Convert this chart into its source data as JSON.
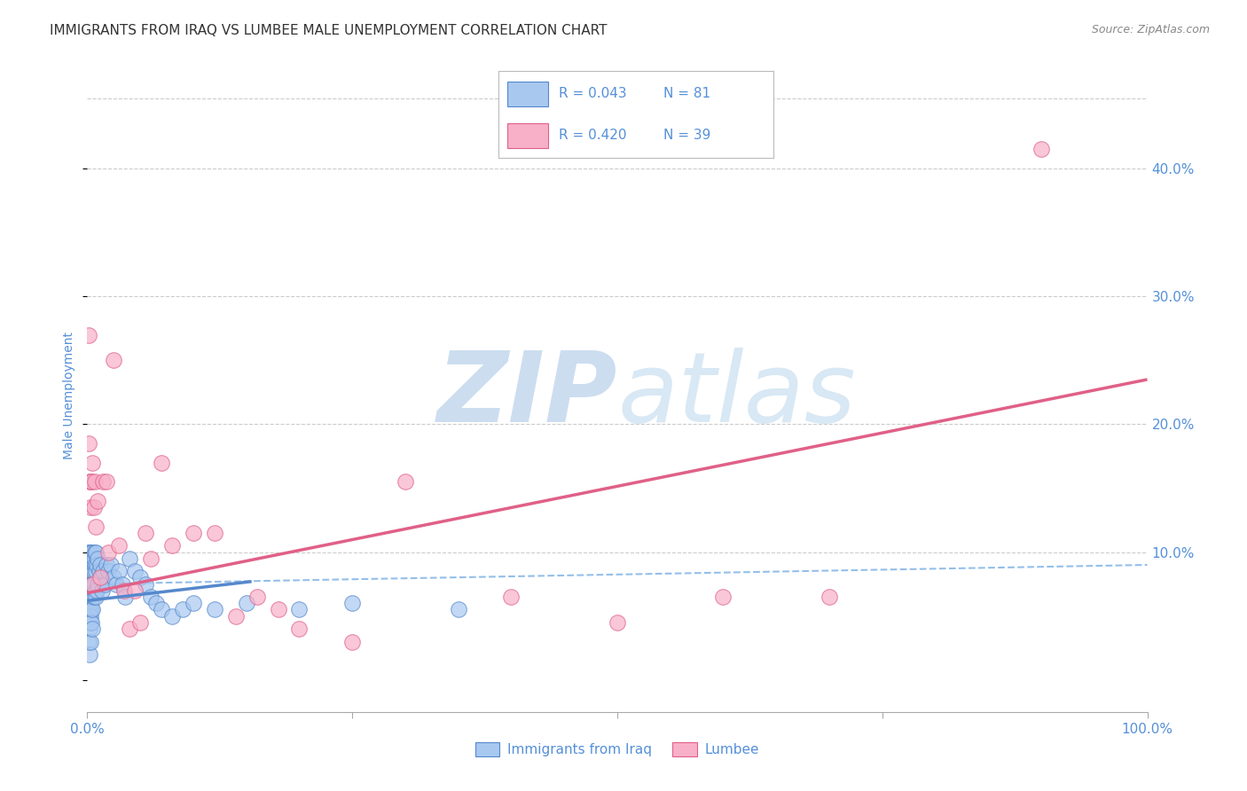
{
  "title": "IMMIGRANTS FROM IRAQ VS LUMBEE MALE UNEMPLOYMENT CORRELATION CHART",
  "source": "Source: ZipAtlas.com",
  "ylabel": "Male Unemployment",
  "xlim": [
    0.0,
    1.0
  ],
  "ylim": [
    -0.025,
    0.47
  ],
  "blue_R": "0.043",
  "blue_N": "81",
  "pink_R": "0.420",
  "pink_N": "39",
  "blue_color": "#a8c8f0",
  "blue_edge": "#5588cc",
  "pink_color": "#f8b0c8",
  "pink_edge": "#e06088",
  "blue_trend_x": [
    0.0,
    0.155
  ],
  "blue_trend_y": [
    0.062,
    0.077
  ],
  "pink_trend_x": [
    0.0,
    1.0
  ],
  "pink_trend_y": [
    0.068,
    0.235
  ],
  "mean_line_y_start": 0.075,
  "mean_line_y_end": 0.09,
  "mean_line_color": "#88b8e8",
  "grid_color": "#cccccc",
  "tick_label_color": "#5590d8",
  "axis_label_color": "#5590d8",
  "watermark_color": "#ccddf0",
  "blue_x": [
    0.001,
    0.001,
    0.001,
    0.001,
    0.001,
    0.001,
    0.002,
    0.002,
    0.002,
    0.002,
    0.002,
    0.002,
    0.002,
    0.002,
    0.002,
    0.003,
    0.003,
    0.003,
    0.003,
    0.003,
    0.003,
    0.003,
    0.003,
    0.003,
    0.003,
    0.004,
    0.004,
    0.004,
    0.004,
    0.004,
    0.004,
    0.005,
    0.005,
    0.005,
    0.005,
    0.005,
    0.005,
    0.005,
    0.006,
    0.006,
    0.006,
    0.006,
    0.007,
    0.007,
    0.007,
    0.008,
    0.008,
    0.008,
    0.009,
    0.009,
    0.01,
    0.01,
    0.011,
    0.012,
    0.013,
    0.014,
    0.015,
    0.016,
    0.018,
    0.02,
    0.022,
    0.025,
    0.027,
    0.03,
    0.033,
    0.036,
    0.04,
    0.045,
    0.05,
    0.055,
    0.06,
    0.065,
    0.07,
    0.08,
    0.09,
    0.1,
    0.12,
    0.15,
    0.2,
    0.25,
    0.35
  ],
  "blue_y": [
    0.1,
    0.09,
    0.08,
    0.07,
    0.055,
    0.03,
    0.1,
    0.09,
    0.08,
    0.07,
    0.065,
    0.055,
    0.05,
    0.04,
    0.02,
    0.1,
    0.09,
    0.085,
    0.075,
    0.07,
    0.065,
    0.06,
    0.05,
    0.045,
    0.03,
    0.095,
    0.085,
    0.075,
    0.065,
    0.055,
    0.045,
    0.1,
    0.09,
    0.085,
    0.075,
    0.065,
    0.055,
    0.04,
    0.095,
    0.085,
    0.075,
    0.065,
    0.1,
    0.09,
    0.07,
    0.1,
    0.085,
    0.065,
    0.09,
    0.07,
    0.095,
    0.075,
    0.085,
    0.09,
    0.08,
    0.07,
    0.085,
    0.075,
    0.09,
    0.085,
    0.09,
    0.08,
    0.075,
    0.085,
    0.075,
    0.065,
    0.095,
    0.085,
    0.08,
    0.075,
    0.065,
    0.06,
    0.055,
    0.05,
    0.055,
    0.06,
    0.055,
    0.06,
    0.055,
    0.06,
    0.055
  ],
  "pink_x": [
    0.001,
    0.001,
    0.002,
    0.003,
    0.003,
    0.004,
    0.005,
    0.005,
    0.006,
    0.007,
    0.008,
    0.01,
    0.012,
    0.015,
    0.018,
    0.02,
    0.025,
    0.03,
    0.035,
    0.04,
    0.045,
    0.05,
    0.055,
    0.06,
    0.07,
    0.08,
    0.1,
    0.12,
    0.14,
    0.16,
    0.18,
    0.2,
    0.25,
    0.3,
    0.4,
    0.5,
    0.6,
    0.7,
    0.9
  ],
  "pink_y": [
    0.185,
    0.27,
    0.155,
    0.155,
    0.135,
    0.155,
    0.17,
    0.075,
    0.135,
    0.155,
    0.12,
    0.14,
    0.08,
    0.155,
    0.155,
    0.1,
    0.25,
    0.105,
    0.07,
    0.04,
    0.07,
    0.045,
    0.115,
    0.095,
    0.17,
    0.105,
    0.115,
    0.115,
    0.05,
    0.065,
    0.055,
    0.04,
    0.03,
    0.155,
    0.065,
    0.045,
    0.065,
    0.065,
    0.415
  ]
}
